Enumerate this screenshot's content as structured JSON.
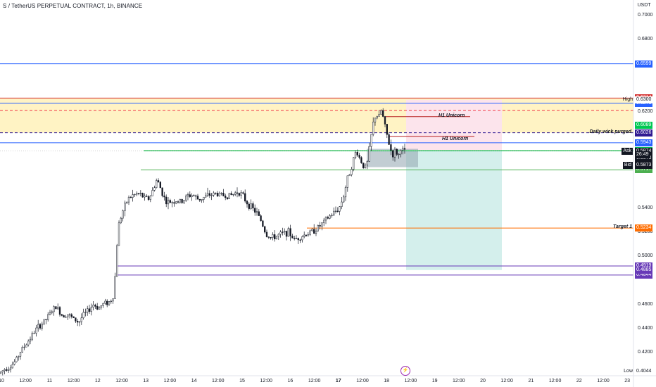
{
  "header": {
    "title": "S / TetherUS PERPETUAL CONTRACT, 1h, BINANCE",
    "currency": "USDT"
  },
  "chart_data": {
    "type": "candlestick",
    "symbol": "S / TetherUS PERPETUAL CONTRACT",
    "timeframe": "1h",
    "exchange": "BINANCE",
    "y_axis": {
      "ticks": [
        "0.7000",
        "0.6800",
        "0.6200",
        "0.5400",
        "0.5200",
        "0.5000",
        "0.4600",
        "0.4400",
        "0.4200"
      ]
    },
    "x_axis": {
      "ticks": [
        "10",
        "12:00",
        "11",
        "12:00",
        "12",
        "12:00",
        "13",
        "12:00",
        "14",
        "12:00",
        "15",
        "12:00",
        "16",
        "12:00",
        "17",
        "12:00",
        "18",
        "12:00",
        "19",
        "12:00",
        "20",
        "12:00",
        "21",
        "12:00",
        "22",
        "12:00",
        "23"
      ]
    },
    "price_path": [
      [
        0,
        0.403
      ],
      [
        8,
        0.407
      ],
      [
        14,
        0.408
      ],
      [
        22,
        0.413
      ],
      [
        30,
        0.422
      ],
      [
        36,
        0.426
      ],
      [
        44,
        0.433
      ],
      [
        52,
        0.44
      ],
      [
        58,
        0.443
      ],
      [
        66,
        0.448
      ],
      [
        74,
        0.455
      ],
      [
        80,
        0.458
      ],
      [
        88,
        0.451
      ],
      [
        96,
        0.452
      ],
      [
        104,
        0.448
      ],
      [
        112,
        0.445
      ],
      [
        118,
        0.451
      ],
      [
        126,
        0.455
      ],
      [
        132,
        0.46
      ],
      [
        140,
        0.457
      ],
      [
        148,
        0.461
      ],
      [
        156,
        0.462
      ],
      [
        162,
        0.468
      ],
      [
        165,
        0.5
      ],
      [
        168,
        0.525
      ],
      [
        174,
        0.537
      ],
      [
        182,
        0.548
      ],
      [
        190,
        0.551
      ],
      [
        198,
        0.552
      ],
      [
        206,
        0.548
      ],
      [
        212,
        0.548
      ],
      [
        218,
        0.556
      ],
      [
        222,
        0.563
      ],
      [
        226,
        0.56
      ],
      [
        230,
        0.553
      ],
      [
        236,
        0.545
      ],
      [
        242,
        0.545
      ],
      [
        250,
        0.546
      ],
      [
        258,
        0.545
      ],
      [
        266,
        0.55
      ],
      [
        274,
        0.551
      ],
      [
        282,
        0.547
      ],
      [
        290,
        0.549
      ],
      [
        298,
        0.551
      ],
      [
        306,
        0.552
      ],
      [
        314,
        0.551
      ],
      [
        322,
        0.55
      ],
      [
        330,
        0.551
      ],
      [
        338,
        0.554
      ],
      [
        344,
        0.551
      ],
      [
        350,
        0.545
      ],
      [
        358,
        0.54
      ],
      [
        366,
        0.535
      ],
      [
        372,
        0.528
      ],
      [
        378,
        0.518
      ],
      [
        386,
        0.515
      ],
      [
        394,
        0.517
      ],
      [
        402,
        0.519
      ],
      [
        410,
        0.52
      ],
      [
        418,
        0.514
      ],
      [
        426,
        0.516
      ],
      [
        434,
        0.518
      ],
      [
        442,
        0.52
      ],
      [
        450,
        0.523
      ],
      [
        458,
        0.527
      ],
      [
        466,
        0.532
      ],
      [
        474,
        0.536
      ],
      [
        482,
        0.54
      ],
      [
        488,
        0.55
      ],
      [
        494,
        0.565
      ],
      [
        500,
        0.576
      ],
      [
        506,
        0.588
      ],
      [
        512,
        0.58
      ],
      [
        518,
        0.573
      ],
      [
        522,
        0.578
      ],
      [
        526,
        0.595
      ],
      [
        530,
        0.61
      ],
      [
        534,
        0.618
      ],
      [
        538,
        0.615
      ],
      [
        542,
        0.622
      ],
      [
        546,
        0.61
      ],
      [
        550,
        0.6
      ],
      [
        554,
        0.59
      ],
      [
        558,
        0.584
      ],
      [
        562,
        0.588
      ],
      [
        566,
        0.583
      ],
      [
        570,
        0.591
      ],
      [
        574,
        0.586
      ],
      [
        576,
        0.587
      ]
    ],
    "price_lines": [
      {
        "value": 0.6599,
        "label": "0.6599",
        "color": "#2962ff",
        "style": "solid",
        "x_start": 0
      },
      {
        "value": 0.6314,
        "label": "0.6314",
        "color": "#d32f2f",
        "style": "solid",
        "x_start": 0
      },
      {
        "value": 0.6271,
        "label": "0.6271",
        "color": "#2962ff",
        "style": "solid",
        "x_start": 0
      },
      {
        "value": 0.6211,
        "label": "",
        "color": "#f23645",
        "style": "dashed",
        "x_start": 0
      },
      {
        "value": 0.6089,
        "label": "0.6089",
        "color": "#00c853",
        "style": "none",
        "x_start": 0
      },
      {
        "value": 0.6026,
        "label": "0.6026",
        "color": "#311b92",
        "style": "dashed",
        "x_start": 0
      },
      {
        "value": 0.5943,
        "label": "0.5943",
        "color": "#2962ff",
        "style": "solid",
        "x_start": 0
      },
      {
        "value": 0.588,
        "label": "0.5880",
        "color": "#a5d6a7",
        "style": "solid",
        "x_start": 204
      },
      {
        "value": 0.5875,
        "label": "0.5875",
        "color": "#00c853",
        "style": "solid",
        "x_start": 204
      },
      {
        "value": 0.5717,
        "label": "0.5717",
        "color": "#4caf50",
        "style": "solid",
        "x_start": 200
      },
      {
        "value": 0.5234,
        "label": "0.5234",
        "color": "#ff6d00",
        "style": "solid",
        "x_start": 436
      },
      {
        "value": 0.4919,
        "label": "0.4919",
        "color": "#673ab7",
        "style": "solid",
        "x_start": 166
      },
      {
        "value": 0.4844,
        "label": "0.4844",
        "color": "#673ab7",
        "style": "solid",
        "x_start": 166
      }
    ],
    "extra_labels": [
      {
        "value": 0.63,
        "label": "0.6300",
        "bg": "#ffffff",
        "color": "#131722",
        "side_text": "High"
      },
      {
        "value": 0.5874,
        "label": "0.5874",
        "bg": "#131722",
        "color": "#ffffff",
        "side_text": "Ask"
      },
      {
        "value": 0.5873,
        "label": "0.5873",
        "bg": "#131722",
        "color": "#ffffff",
        "side_text": ""
      },
      {
        "value": 0.5873,
        "label": "0.5873",
        "bg": "#131722",
        "color": "#ffffff",
        "side_text": "Bid"
      },
      {
        "value": 0.4885,
        "label": "0.4885",
        "bg": "#673ab7",
        "color": "#ffffff",
        "side_text": ""
      },
      {
        "value": 0.4044,
        "label": "0.4044",
        "bg": "#ffffff",
        "color": "#131722",
        "side_text": "Low"
      }
    ],
    "countdown": "26:49",
    "annotations": [
      {
        "text": "H1 Unicorn",
        "value": 0.616
      },
      {
        "text": "H1 Unicorn",
        "value": 0.5965
      },
      {
        "text": "Daily wick purged",
        "value": 0.6026
      },
      {
        "text": "Target 1",
        "value": 0.5234
      }
    ],
    "zones": [
      {
        "name": "supply-zone",
        "from": 0.6314,
        "to": 0.6026,
        "color": "#fff3c4"
      },
      {
        "name": "stop-zone",
        "from": 0.63,
        "to": 0.588,
        "color": "#fce4ec"
      },
      {
        "name": "target-zone",
        "from": 0.588,
        "to": 0.4885,
        "color": "#d4efec"
      },
      {
        "name": "entry-box",
        "from": 0.5892,
        "to": 0.574,
        "color": "#90a4ae"
      }
    ],
    "grid": false
  },
  "colors": {
    "up": "#131722",
    "down": "#131722",
    "blue_line": "#2962ff",
    "purple_line": "#673ab7",
    "orange_line": "#ff6d00",
    "green_line": "#4caf50"
  },
  "icons": {
    "flash": "lightning-icon"
  }
}
